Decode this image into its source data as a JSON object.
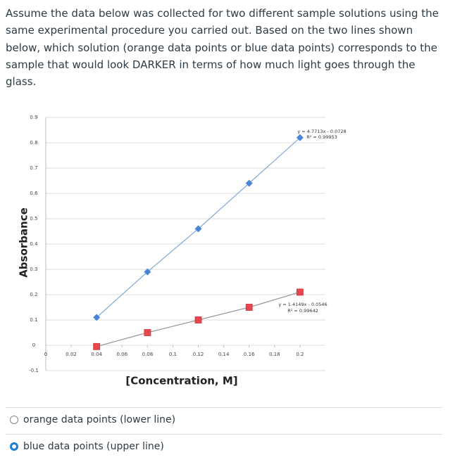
{
  "question": "Assume the data below was collected for two different sample solutions using the same experimental procedure you carried out. Based on the two lines shown below, which solution (orange data points or blue data points) corresponds to the sample that would look DARKER in terms of how much light goes through the glass.",
  "chart_data": {
    "type": "scatter",
    "x_label": "[Concentration, M]",
    "y_label": "Absorbance",
    "x": [
      0.04,
      0.08,
      0.12,
      0.16,
      0.2
    ],
    "series": [
      {
        "name": "blue data points",
        "color": "#4a86d8",
        "line_color": "#8aaed6",
        "marker": "diamond",
        "values": [
          0.11,
          0.29,
          0.46,
          0.64,
          0.82
        ]
      },
      {
        "name": "orange data points",
        "color": "#e8474f",
        "line_color": "#9a9a9a",
        "marker": "square",
        "values": [
          -0.005,
          0.05,
          0.1,
          0.15,
          0.21
        ]
      }
    ],
    "annotations": [
      "y = 4.7713x - 0.0728",
      "R² = 0.99953",
      "y = 1.4149x - 0.0546",
      "R² = 0.99642"
    ],
    "xlim": [
      0,
      0.22
    ],
    "ylim": [
      -0.1,
      0.9
    ],
    "xticks": [
      0,
      0.02,
      0.04,
      0.06,
      0.08,
      0.1,
      0.12,
      0.14,
      0.16,
      0.18,
      0.2
    ],
    "yticks": [
      -0.1,
      0,
      0.1,
      0.2,
      0.3,
      0.4,
      0.5,
      0.6,
      0.7,
      0.8,
      0.9
    ],
    "grid": true
  },
  "options": [
    {
      "label": "orange data points (lower line)",
      "selected": false
    },
    {
      "label": "blue data points (upper line)",
      "selected": true
    }
  ]
}
